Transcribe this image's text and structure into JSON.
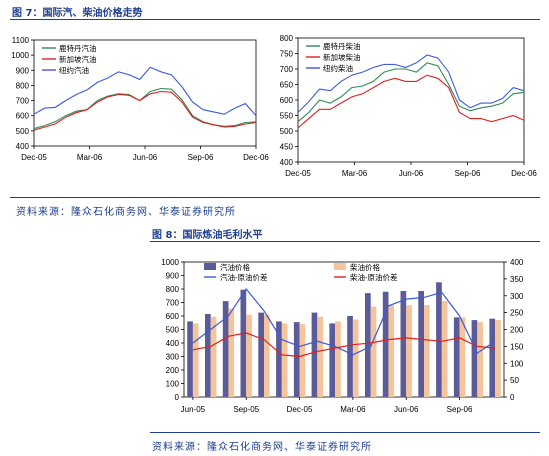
{
  "figure7": {
    "title": "图 7：国际汽、柴油价格走势",
    "source": "资料来源：隆众石化商务网、华泰证券研究所"
  },
  "figure8": {
    "title": "图 8：国际炼油毛利水平",
    "source": "资料来源：隆众石化商务网、华泰证券研究所"
  },
  "colors": {
    "green": "#2e8b57",
    "red": "#e02020",
    "blue": "#3b5bdb",
    "bar_purple": "#5b5b9a",
    "bar_peach": "#f4c49c",
    "navy": "#1f3f8f"
  },
  "chart_data": [
    {
      "id": "gasoline",
      "type": "line",
      "ylim": [
        400,
        1100
      ],
      "yticks": [
        400,
        500,
        600,
        700,
        800,
        900,
        1000,
        1100
      ],
      "xticks": [
        "Dec-05",
        "Mar-06",
        "Jun-06",
        "Sep-06",
        "Dec-06"
      ],
      "legend_position": "top-left",
      "series": [
        {
          "name": "鹿特丹汽油",
          "color": "#2e8b57",
          "values": [
            515,
            535,
            560,
            600,
            630,
            640,
            700,
            730,
            745,
            740,
            700,
            760,
            780,
            775,
            705,
            600,
            560,
            540,
            530,
            535,
            555,
            560
          ]
        },
        {
          "name": "新加坡汽油",
          "color": "#e02020",
          "values": [
            505,
            525,
            545,
            590,
            620,
            640,
            690,
            725,
            740,
            735,
            700,
            745,
            760,
            755,
            690,
            590,
            555,
            540,
            525,
            530,
            545,
            555
          ]
        },
        {
          "name": "纽约汽油",
          "color": "#3b5bdb",
          "values": [
            610,
            650,
            655,
            700,
            740,
            770,
            820,
            850,
            890,
            870,
            840,
            920,
            890,
            870,
            790,
            690,
            640,
            625,
            610,
            650,
            680,
            600
          ]
        }
      ]
    },
    {
      "id": "diesel",
      "type": "line",
      "ylim": [
        400,
        800
      ],
      "yticks": [
        400,
        450,
        500,
        550,
        600,
        650,
        700,
        750,
        800
      ],
      "xticks": [
        "Dec-05",
        "Mar-06",
        "Jun-06",
        "Sep-06",
        "Dec-06"
      ],
      "legend_position": "top-left",
      "series": [
        {
          "name": "鹿特丹柴油",
          "color": "#2e8b57",
          "values": [
            530,
            560,
            600,
            590,
            610,
            640,
            645,
            660,
            690,
            700,
            700,
            690,
            720,
            710,
            650,
            580,
            565,
            575,
            580,
            590,
            620,
            625
          ]
        },
        {
          "name": "新加坡柴油",
          "color": "#e02020",
          "values": [
            510,
            540,
            570,
            570,
            590,
            610,
            620,
            640,
            660,
            670,
            660,
            660,
            680,
            670,
            640,
            560,
            540,
            540,
            530,
            540,
            550,
            535
          ]
        },
        {
          "name": "纽约柴油",
          "color": "#3b5bdb",
          "values": [
            560,
            595,
            635,
            630,
            660,
            680,
            690,
            705,
            715,
            715,
            705,
            720,
            745,
            735,
            690,
            600,
            575,
            590,
            590,
            605,
            640,
            630
          ]
        }
      ]
    },
    {
      "id": "refining-margin",
      "type": "bar",
      "categories": [
        "Jun-05",
        "Jul-05",
        "Aug-05",
        "Sep-05",
        "Oct-05",
        "Nov-05",
        "Dec-05",
        "Jan-06",
        "Feb-06",
        "Mar-06",
        "Apr-06",
        "May-06",
        "Jun-06",
        "Jul-06",
        "Aug-06",
        "Sep-06",
        "Oct-06",
        "Nov-06"
      ],
      "xtick_labels": [
        "Jun-05",
        "Sep-05",
        "Dec-05",
        "Mar-06",
        "Jun-06",
        "Sep-06"
      ],
      "xtick_index": [
        0,
        3,
        6,
        9,
        12,
        15
      ],
      "ylim_left": [
        0,
        1000
      ],
      "yticks_left": [
        0,
        100,
        200,
        300,
        400,
        500,
        600,
        700,
        800,
        900,
        1000
      ],
      "ylim_right": [
        0,
        400
      ],
      "yticks_right": [
        0,
        50,
        100,
        150,
        200,
        250,
        300,
        350,
        400
      ],
      "bars": [
        {
          "name": "汽油价格",
          "color": "#5b5b9a",
          "axis": "left",
          "values": [
            560,
            615,
            710,
            795,
            625,
            560,
            555,
            625,
            545,
            600,
            770,
            780,
            785,
            785,
            850,
            590,
            570,
            580
          ]
        },
        {
          "name": "柴油价格",
          "color": "#f4c49c",
          "axis": "left",
          "values": [
            545,
            595,
            655,
            610,
            610,
            545,
            540,
            595,
            560,
            575,
            670,
            680,
            680,
            680,
            710,
            590,
            555,
            570
          ]
        }
      ],
      "lines": [
        {
          "name": "汽油-原油价差",
          "color": "#3b5bdb",
          "axis": "right",
          "values": [
            160,
            200,
            240,
            320,
            255,
            170,
            150,
            165,
            150,
            125,
            150,
            270,
            290,
            295,
            310,
            240,
            130,
            165
          ]
        },
        {
          "name": "柴油-原油价差",
          "color": "#e02020",
          "axis": "right",
          "values": [
            140,
            150,
            180,
            190,
            170,
            125,
            120,
            135,
            145,
            155,
            160,
            170,
            175,
            170,
            165,
            175,
            150,
            145
          ]
        }
      ]
    }
  ]
}
